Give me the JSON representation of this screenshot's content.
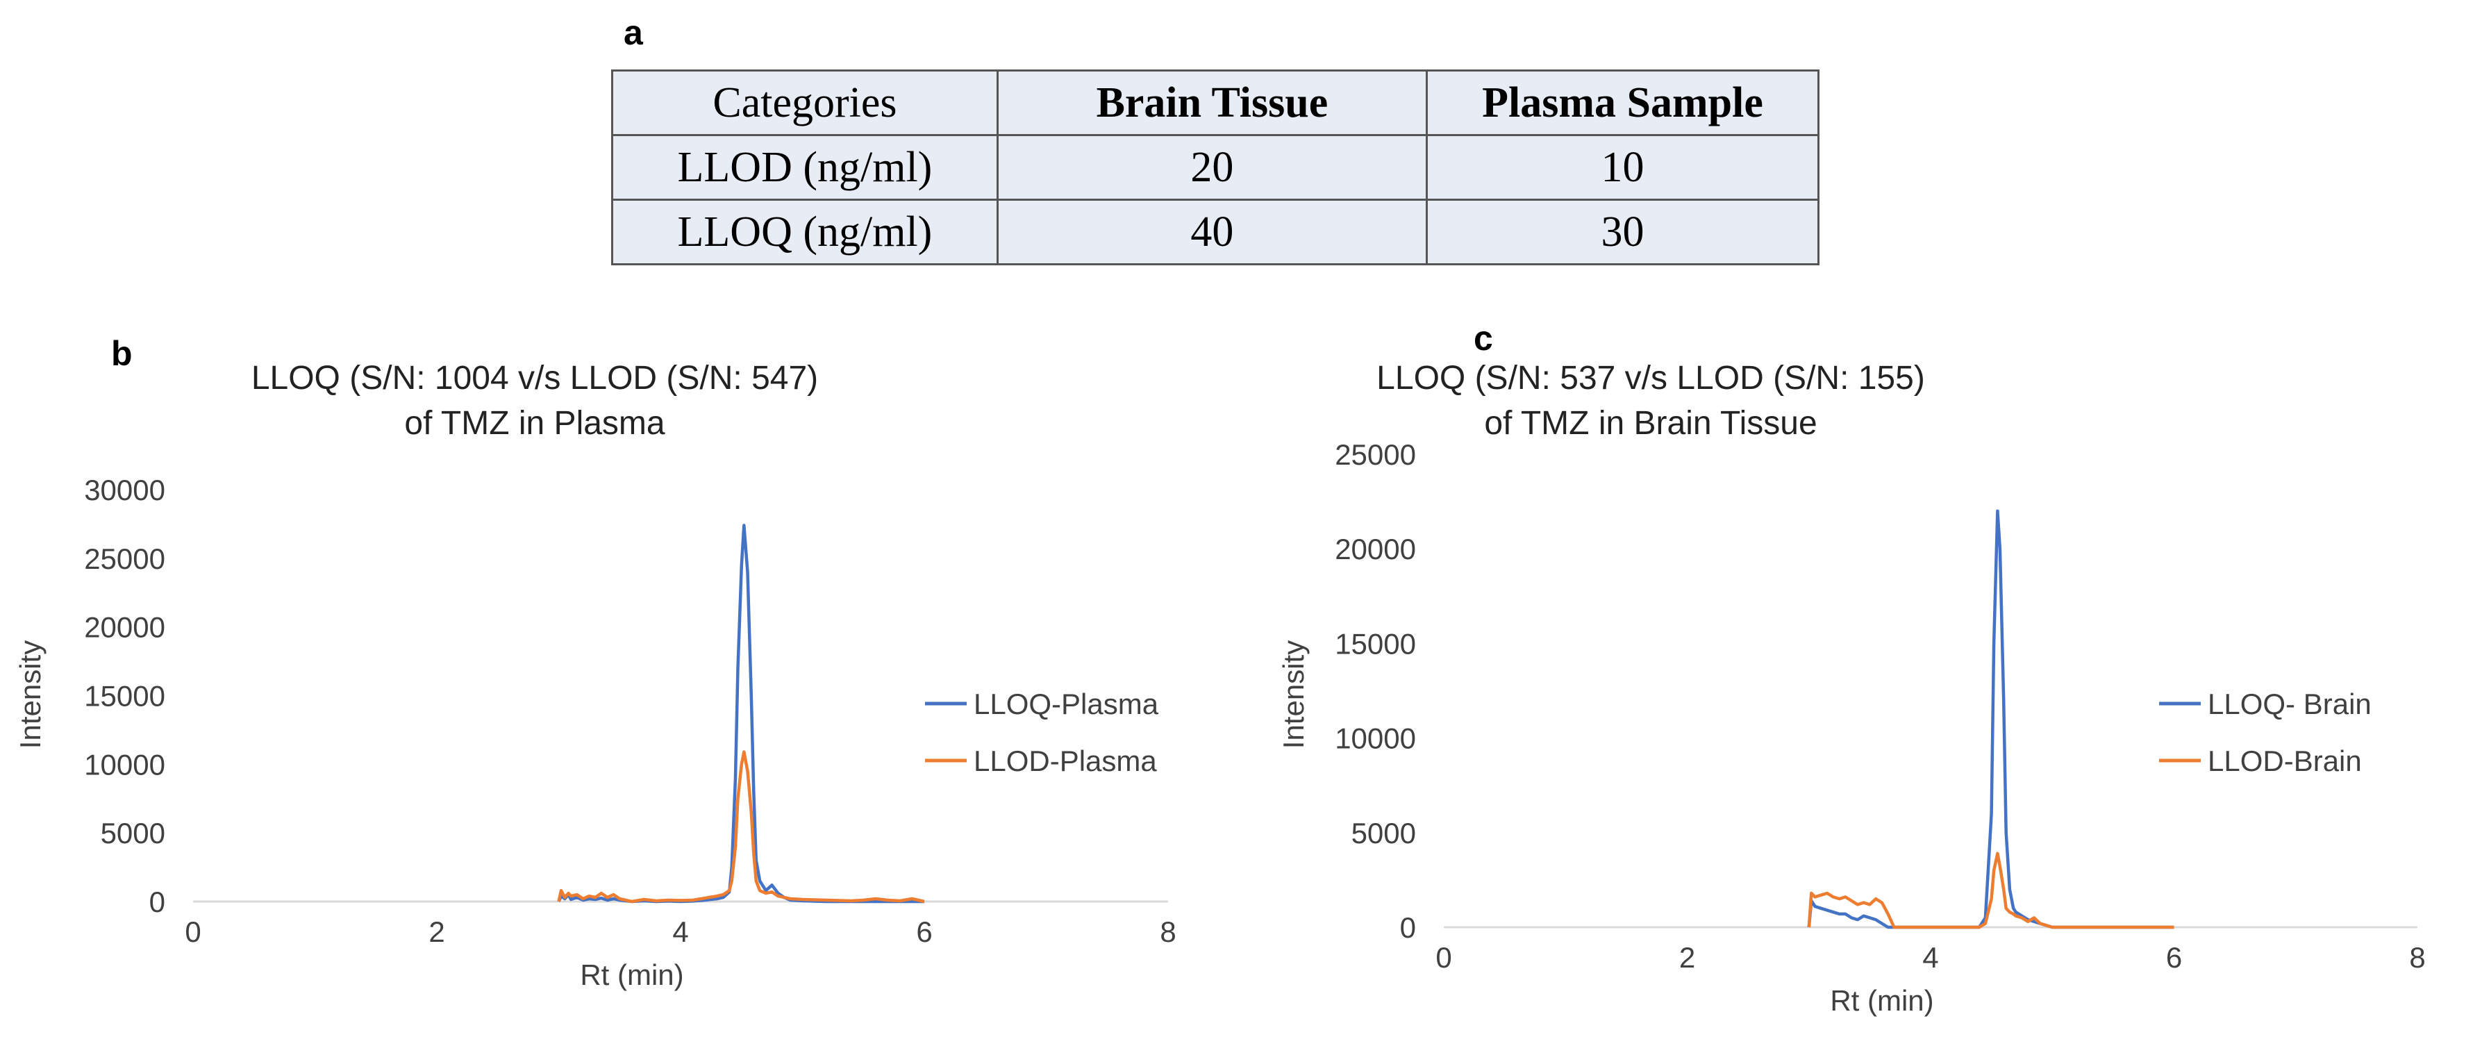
{
  "panels": {
    "a": "a",
    "b": "b",
    "c": "c"
  },
  "table": {
    "headers": [
      "Categories",
      "Brain Tissue",
      "Plasma Sample"
    ],
    "rows": [
      [
        "LLOD (ng/ml)",
        "20",
        "10"
      ],
      [
        "LLOQ (ng/ml)",
        "40",
        "30"
      ]
    ],
    "background": "#e8ecf4"
  },
  "chart_data": [
    {
      "type": "line",
      "title": "LLOQ (S/N: 1004 v/s LLOD (S/N: 547)",
      "subtitle": "of TMZ in Plasma",
      "xlabel": "Rt (min)",
      "ylabel": "Intensity",
      "xlim": [
        0,
        8
      ],
      "ylim": [
        0,
        30000
      ],
      "xticks": [
        0,
        2,
        4,
        6,
        8
      ],
      "yticks": [
        0,
        5000,
        10000,
        15000,
        20000,
        25000,
        30000
      ],
      "grid": false,
      "legend_position": "right",
      "series": [
        {
          "name": "LLOQ-Plasma",
          "color": "#4472c4",
          "x": [
            3.0,
            3.02,
            3.05,
            3.08,
            3.1,
            3.15,
            3.2,
            3.25,
            3.3,
            3.35,
            3.4,
            3.45,
            3.5,
            3.55,
            3.6,
            3.7,
            3.8,
            3.9,
            4.0,
            4.1,
            4.2,
            4.3,
            4.35,
            4.4,
            4.42,
            4.45,
            4.47,
            4.5,
            4.52,
            4.55,
            4.58,
            4.6,
            4.62,
            4.65,
            4.7,
            4.75,
            4.8,
            4.85,
            4.9,
            5.0,
            5.2,
            5.4,
            5.5,
            5.6,
            5.7,
            5.8,
            5.9,
            6.0
          ],
          "values": [
            0,
            400,
            200,
            500,
            150,
            300,
            100,
            200,
            150,
            250,
            100,
            200,
            100,
            50,
            0,
            50,
            0,
            30,
            0,
            30,
            100,
            200,
            300,
            700,
            2500,
            9000,
            17000,
            24500,
            27400,
            24000,
            15000,
            8000,
            3000,
            1500,
            800,
            1200,
            600,
            300,
            100,
            50,
            0,
            0,
            0,
            0,
            0,
            0,
            0,
            0
          ]
        },
        {
          "name": "LLOD-Plasma",
          "color": "#ed7d31",
          "x": [
            3.0,
            3.02,
            3.05,
            3.08,
            3.1,
            3.15,
            3.2,
            3.25,
            3.3,
            3.35,
            3.4,
            3.45,
            3.5,
            3.55,
            3.6,
            3.7,
            3.8,
            3.9,
            4.0,
            4.1,
            4.2,
            4.3,
            4.35,
            4.4,
            4.42,
            4.45,
            4.47,
            4.5,
            4.52,
            4.55,
            4.58,
            4.6,
            4.62,
            4.65,
            4.7,
            4.75,
            4.8,
            4.85,
            4.9,
            5.0,
            5.2,
            5.4,
            5.5,
            5.6,
            5.7,
            5.8,
            5.9,
            6.0
          ],
          "values": [
            0,
            800,
            300,
            600,
            400,
            500,
            200,
            400,
            300,
            600,
            300,
            500,
            200,
            100,
            0,
            150,
            50,
            100,
            80,
            100,
            250,
            400,
            500,
            800,
            1500,
            4000,
            7500,
            10000,
            10900,
            9500,
            6500,
            3500,
            1500,
            800,
            600,
            700,
            400,
            300,
            200,
            150,
            100,
            50,
            100,
            200,
            100,
            50,
            200,
            0
          ]
        }
      ]
    },
    {
      "type": "line",
      "title": "LLOQ (S/N: 537 v/s LLOD (S/N: 155)",
      "subtitle": "of TMZ in Brain Tissue",
      "xlabel": "Rt (min)",
      "ylabel": "Intensity",
      "xlim": [
        0,
        8
      ],
      "ylim": [
        0,
        25000
      ],
      "xticks": [
        0,
        2,
        4,
        6,
        8
      ],
      "yticks": [
        0,
        5000,
        10000,
        15000,
        20000,
        25000
      ],
      "grid": false,
      "legend_position": "right",
      "series": [
        {
          "name": "LLOQ- Brain",
          "color": "#4472c4",
          "x": [
            3.0,
            3.02,
            3.05,
            3.1,
            3.15,
            3.2,
            3.25,
            3.3,
            3.35,
            3.4,
            3.45,
            3.5,
            3.55,
            3.6,
            3.65,
            3.7,
            3.75,
            3.8,
            3.9,
            4.0,
            4.1,
            4.2,
            4.3,
            4.4,
            4.45,
            4.5,
            4.52,
            4.55,
            4.57,
            4.6,
            4.62,
            4.65,
            4.68,
            4.7,
            4.75,
            4.8,
            4.85,
            4.9,
            4.95,
            5.0,
            5.2,
            5.5,
            6.0
          ],
          "values": [
            0,
            1400,
            1100,
            1000,
            900,
            800,
            700,
            700,
            500,
            400,
            600,
            500,
            400,
            200,
            0,
            0,
            0,
            0,
            0,
            0,
            0,
            0,
            0,
            0,
            500,
            6000,
            15000,
            22000,
            20000,
            12000,
            5000,
            2000,
            1000,
            800,
            600,
            400,
            300,
            200,
            100,
            0,
            0,
            0,
            0
          ]
        },
        {
          "name": "LLOD-Brain",
          "color": "#ed7d31",
          "x": [
            3.0,
            3.02,
            3.05,
            3.1,
            3.15,
            3.2,
            3.25,
            3.3,
            3.35,
            3.4,
            3.45,
            3.5,
            3.55,
            3.6,
            3.65,
            3.7,
            3.75,
            3.8,
            3.9,
            4.0,
            4.1,
            4.2,
            4.3,
            4.4,
            4.45,
            4.5,
            4.52,
            4.55,
            4.57,
            4.6,
            4.62,
            4.65,
            4.68,
            4.7,
            4.75,
            4.8,
            4.85,
            4.9,
            4.95,
            5.0,
            5.2,
            5.5,
            6.0
          ],
          "values": [
            0,
            1800,
            1600,
            1700,
            1800,
            1600,
            1500,
            1600,
            1400,
            1200,
            1300,
            1200,
            1500,
            1300,
            700,
            0,
            0,
            0,
            0,
            0,
            0,
            0,
            0,
            0,
            200,
            1500,
            3000,
            3900,
            3200,
            2000,
            1000,
            800,
            700,
            600,
            500,
            300,
            500,
            200,
            100,
            0,
            0,
            0,
            0
          ]
        }
      ]
    }
  ]
}
